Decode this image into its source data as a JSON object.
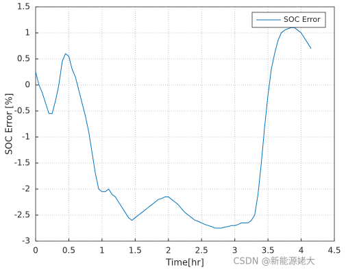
{
  "chart_data": {
    "type": "line",
    "xlabel": "Time[hr]",
    "ylabel": "SOC Error [%]",
    "x": [
      0,
      0.05,
      0.1,
      0.15,
      0.2,
      0.25,
      0.3,
      0.35,
      0.4,
      0.45,
      0.5,
      0.55,
      0.6,
      0.65,
      0.7,
      0.75,
      0.8,
      0.85,
      0.9,
      0.95,
      1.0,
      1.05,
      1.1,
      1.15,
      1.2,
      1.25,
      1.3,
      1.35,
      1.4,
      1.45,
      1.5,
      1.55,
      1.6,
      1.65,
      1.7,
      1.75,
      1.8,
      1.85,
      1.9,
      1.95,
      2.0,
      2.05,
      2.1,
      2.15,
      2.2,
      2.25,
      2.3,
      2.35,
      2.4,
      2.45,
      2.5,
      2.55,
      2.6,
      2.65,
      2.7,
      2.75,
      2.8,
      2.85,
      2.9,
      2.95,
      3.0,
      3.05,
      3.1,
      3.15,
      3.2,
      3.25,
      3.3,
      3.35,
      3.4,
      3.45,
      3.5,
      3.55,
      3.6,
      3.65,
      3.7,
      3.75,
      3.8,
      3.85,
      3.9,
      3.95,
      4.0,
      4.05,
      4.1,
      4.15
    ],
    "series": [
      {
        "name": "SOC Error",
        "color": "#0072bd",
        "values": [
          0.25,
          0.0,
          -0.15,
          -0.35,
          -0.55,
          -0.55,
          -0.3,
          0.0,
          0.45,
          0.6,
          0.55,
          0.3,
          0.15,
          -0.1,
          -0.35,
          -0.6,
          -0.9,
          -1.3,
          -1.7,
          -2.0,
          -2.05,
          -2.05,
          -2.0,
          -2.1,
          -2.15,
          -2.25,
          -2.35,
          -2.45,
          -2.55,
          -2.6,
          -2.55,
          -2.5,
          -2.45,
          -2.4,
          -2.35,
          -2.3,
          -2.25,
          -2.2,
          -2.18,
          -2.15,
          -2.15,
          -2.2,
          -2.25,
          -2.3,
          -2.38,
          -2.45,
          -2.5,
          -2.55,
          -2.6,
          -2.62,
          -2.65,
          -2.68,
          -2.7,
          -2.72,
          -2.75,
          -2.75,
          -2.75,
          -2.73,
          -2.72,
          -2.7,
          -2.7,
          -2.68,
          -2.65,
          -2.65,
          -2.65,
          -2.6,
          -2.5,
          -2.1,
          -1.5,
          -0.8,
          -0.2,
          0.3,
          0.6,
          0.85,
          1.0,
          1.05,
          1.08,
          1.1,
          1.1,
          1.05,
          1.0,
          0.9,
          0.8,
          0.7
        ]
      }
    ],
    "xlim": [
      0,
      4.5
    ],
    "xticks": [
      0,
      0.5,
      1,
      1.5,
      2,
      2.5,
      3,
      3.5,
      4,
      4.5
    ],
    "ylim": [
      -3,
      1.5
    ],
    "yticks": [
      -3,
      -2.5,
      -2,
      -1.5,
      -1,
      -0.5,
      0,
      0.5,
      1,
      1.5
    ],
    "grid": true,
    "legend": "top-right",
    "watermark": "CSDN @新能源姥大"
  }
}
